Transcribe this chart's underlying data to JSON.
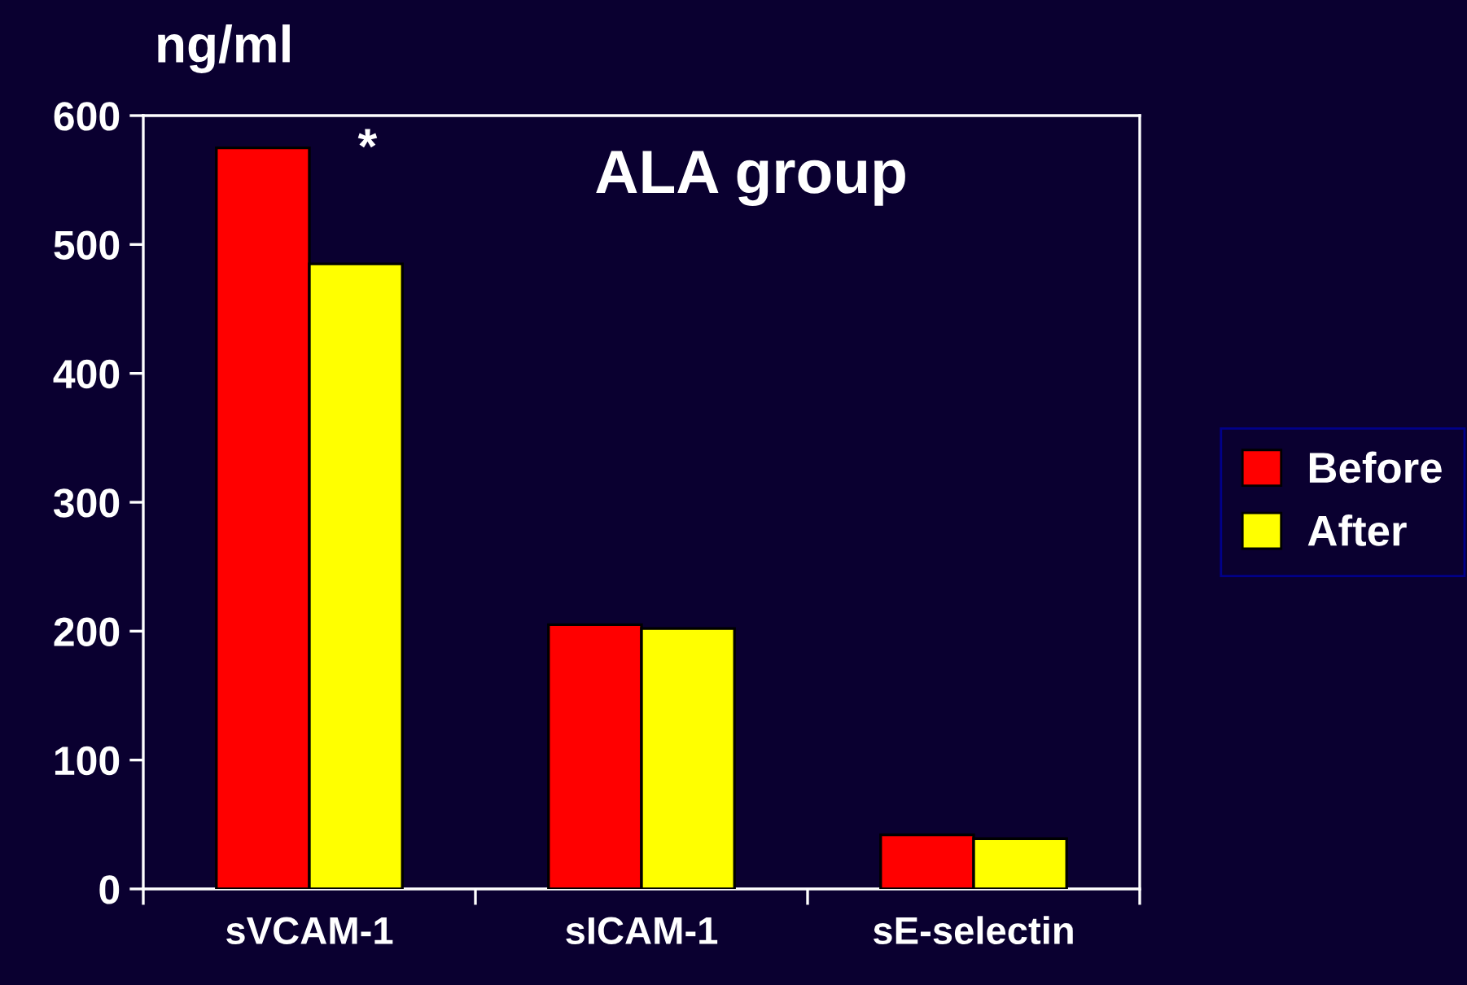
{
  "chart_data": {
    "type": "bar",
    "title": "ALA group",
    "ylabel": "ng/ml",
    "categories": [
      "sVCAM-1",
      "sICAM-1",
      "sE-selectin"
    ],
    "series": [
      {
        "name": "Before",
        "color": "#ff0000",
        "values": [
          575,
          205,
          42
        ]
      },
      {
        "name": "After",
        "color": "#ffff00",
        "values": [
          485,
          202,
          39
        ]
      }
    ],
    "ylim": [
      0,
      600
    ],
    "yticks": [
      0,
      100,
      200,
      300,
      400,
      500,
      600
    ],
    "annotations": [
      "*"
    ],
    "legend": "right",
    "grid": false
  }
}
